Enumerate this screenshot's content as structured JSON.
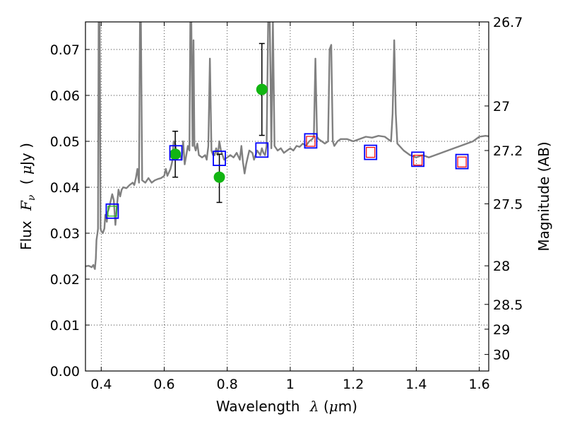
{
  "chart_data": {
    "type": "scatter",
    "xlabel": {
      "pre": "Wavelength",
      "sym": "λ",
      "unit_open": " (",
      "mu": "μ",
      "unit_rest": "m)"
    },
    "ylabel": {
      "pre": "Flux",
      "sym": "F",
      "sub": "ν",
      "unit_open": "( ",
      "mu": "μ",
      "unit_rest": "Jy )"
    },
    "y2label": "Magnitude (AB)",
    "xlim": [
      0.35,
      1.63
    ],
    "ylim": [
      0.0,
      0.076
    ],
    "x_ticks": [
      0.4,
      0.6,
      0.8,
      1.0,
      1.2,
      1.4,
      1.6
    ],
    "x_tick_labels": [
      "0.4",
      "0.6",
      "0.8",
      "1",
      "1.2",
      "1.4",
      "1.6"
    ],
    "y_ticks": [
      0.0,
      0.01,
      0.02,
      0.03,
      0.04,
      0.05,
      0.06,
      0.07
    ],
    "y_tick_labels": [
      "0.00",
      "0.01",
      "0.02",
      "0.03",
      "0.04",
      "0.05",
      "0.06",
      "0.07"
    ],
    "y2_ticks": [
      {
        "label": "26.7",
        "flux": 0.076
      },
      {
        "label": "27",
        "flux": 0.0577
      },
      {
        "label": "27.2",
        "flux": 0.048
      },
      {
        "label": "27.5",
        "flux": 0.0364
      },
      {
        "label": "28",
        "flux": 0.0229
      },
      {
        "label": "28.5",
        "flux": 0.0145
      },
      {
        "label": "29",
        "flux": 0.0091
      },
      {
        "label": "30",
        "flux": 0.0036
      }
    ],
    "grid": true,
    "series": [
      {
        "type": "line",
        "color": "#808080",
        "points": [
          [
            0.35,
            0.0228
          ],
          [
            0.36,
            0.0229
          ],
          [
            0.37,
            0.0226
          ],
          [
            0.375,
            0.0231
          ],
          [
            0.378,
            0.0225
          ],
          [
            0.38,
            0.0222
          ],
          [
            0.383,
            0.0245
          ],
          [
            0.385,
            0.0285
          ],
          [
            0.388,
            0.03
          ],
          [
            0.39,
            0.031
          ],
          [
            0.392,
            0.076
          ],
          [
            0.395,
            0.076
          ],
          [
            0.398,
            0.031
          ],
          [
            0.4,
            0.0305
          ],
          [
            0.405,
            0.03
          ],
          [
            0.41,
            0.031
          ],
          [
            0.413,
            0.034
          ],
          [
            0.418,
            0.0325
          ],
          [
            0.42,
            0.0345
          ],
          [
            0.425,
            0.0355
          ],
          [
            0.43,
            0.037
          ],
          [
            0.435,
            0.0385
          ],
          [
            0.44,
            0.0372
          ],
          [
            0.445,
            0.0318
          ],
          [
            0.45,
            0.036
          ],
          [
            0.455,
            0.0395
          ],
          [
            0.46,
            0.038
          ],
          [
            0.465,
            0.0395
          ],
          [
            0.47,
            0.04
          ],
          [
            0.48,
            0.0398
          ],
          [
            0.49,
            0.0405
          ],
          [
            0.5,
            0.041
          ],
          [
            0.505,
            0.0405
          ],
          [
            0.51,
            0.042
          ],
          [
            0.515,
            0.044
          ],
          [
            0.52,
            0.041
          ],
          [
            0.523,
            0.076
          ],
          [
            0.526,
            0.076
          ],
          [
            0.53,
            0.0415
          ],
          [
            0.54,
            0.041
          ],
          [
            0.55,
            0.042
          ],
          [
            0.56,
            0.041
          ],
          [
            0.57,
            0.0415
          ],
          [
            0.58,
            0.0418
          ],
          [
            0.59,
            0.042
          ],
          [
            0.6,
            0.0425
          ],
          [
            0.605,
            0.044
          ],
          [
            0.61,
            0.0425
          ],
          [
            0.62,
            0.044
          ],
          [
            0.625,
            0.0455
          ],
          [
            0.63,
            0.05
          ],
          [
            0.635,
            0.0495
          ],
          [
            0.64,
            0.047
          ],
          [
            0.645,
            0.048
          ],
          [
            0.65,
            0.047
          ],
          [
            0.655,
            0.046
          ],
          [
            0.66,
            0.05
          ],
          [
            0.665,
            0.045
          ],
          [
            0.67,
            0.047
          ],
          [
            0.675,
            0.049
          ],
          [
            0.68,
            0.048
          ],
          [
            0.683,
            0.076
          ],
          [
            0.686,
            0.076
          ],
          [
            0.69,
            0.049
          ],
          [
            0.693,
            0.072
          ],
          [
            0.696,
            0.049
          ],
          [
            0.7,
            0.048
          ],
          [
            0.705,
            0.0495
          ],
          [
            0.71,
            0.047
          ],
          [
            0.72,
            0.0465
          ],
          [
            0.73,
            0.047
          ],
          [
            0.735,
            0.046
          ],
          [
            0.74,
            0.049
          ],
          [
            0.745,
            0.068
          ],
          [
            0.75,
            0.048
          ],
          [
            0.755,
            0.047
          ],
          [
            0.76,
            0.047
          ],
          [
            0.765,
            0.0485
          ],
          [
            0.77,
            0.047
          ],
          [
            0.775,
            0.05
          ],
          [
            0.78,
            0.048
          ],
          [
            0.785,
            0.047
          ],
          [
            0.79,
            0.046
          ],
          [
            0.8,
            0.0465
          ],
          [
            0.81,
            0.047
          ],
          [
            0.82,
            0.0465
          ],
          [
            0.83,
            0.0475
          ],
          [
            0.84,
            0.046
          ],
          [
            0.845,
            0.049
          ],
          [
            0.85,
            0.0455
          ],
          [
            0.855,
            0.043
          ],
          [
            0.86,
            0.045
          ],
          [
            0.865,
            0.0465
          ],
          [
            0.87,
            0.048
          ],
          [
            0.88,
            0.0475
          ],
          [
            0.885,
            0.046
          ],
          [
            0.89,
            0.047
          ],
          [
            0.895,
            0.048
          ],
          [
            0.9,
            0.0475
          ],
          [
            0.905,
            0.047
          ],
          [
            0.91,
            0.0485
          ],
          [
            0.915,
            0.0475
          ],
          [
            0.92,
            0.047
          ],
          [
            0.925,
            0.049
          ],
          [
            0.93,
            0.076
          ],
          [
            0.935,
            0.076
          ],
          [
            0.94,
            0.0485
          ],
          [
            0.945,
            0.076
          ],
          [
            0.95,
            0.049
          ],
          [
            0.96,
            0.048
          ],
          [
            0.97,
            0.0485
          ],
          [
            0.98,
            0.0475
          ],
          [
            0.99,
            0.048
          ],
          [
            1.0,
            0.0485
          ],
          [
            1.01,
            0.048
          ],
          [
            1.02,
            0.049
          ],
          [
            1.03,
            0.0488
          ],
          [
            1.04,
            0.0495
          ],
          [
            1.05,
            0.049
          ],
          [
            1.06,
            0.05
          ],
          [
            1.07,
            0.0505
          ],
          [
            1.075,
            0.051
          ],
          [
            1.08,
            0.068
          ],
          [
            1.085,
            0.051
          ],
          [
            1.09,
            0.0505
          ],
          [
            1.1,
            0.05
          ],
          [
            1.11,
            0.0495
          ],
          [
            1.12,
            0.05
          ],
          [
            1.125,
            0.07
          ],
          [
            1.13,
            0.071
          ],
          [
            1.135,
            0.05
          ],
          [
            1.14,
            0.049
          ],
          [
            1.15,
            0.05
          ],
          [
            1.16,
            0.0505
          ],
          [
            1.18,
            0.0505
          ],
          [
            1.2,
            0.05
          ],
          [
            1.22,
            0.0505
          ],
          [
            1.24,
            0.051
          ],
          [
            1.26,
            0.0508
          ],
          [
            1.28,
            0.0512
          ],
          [
            1.3,
            0.051
          ],
          [
            1.31,
            0.0505
          ],
          [
            1.32,
            0.05
          ],
          [
            1.325,
            0.056
          ],
          [
            1.33,
            0.072
          ],
          [
            1.335,
            0.056
          ],
          [
            1.34,
            0.0495
          ],
          [
            1.36,
            0.048
          ],
          [
            1.38,
            0.047
          ],
          [
            1.4,
            0.0465
          ],
          [
            1.42,
            0.047
          ],
          [
            1.44,
            0.0465
          ],
          [
            1.46,
            0.047
          ],
          [
            1.48,
            0.0475
          ],
          [
            1.5,
            0.048
          ],
          [
            1.52,
            0.0485
          ],
          [
            1.54,
            0.049
          ],
          [
            1.56,
            0.0495
          ],
          [
            1.58,
            0.05
          ],
          [
            1.6,
            0.051
          ],
          [
            1.62,
            0.0512
          ],
          [
            1.63,
            0.0511
          ]
        ]
      },
      {
        "type": "points",
        "marker": "circle",
        "color": "#12b512",
        "points": [
          {
            "x": 0.635,
            "y": 0.0472,
            "yerr_low": 0.005,
            "yerr_high": 0.005
          },
          {
            "x": 0.775,
            "y": 0.0422,
            "yerr_low": 0.0055,
            "yerr_high": 0.005
          },
          {
            "x": 0.91,
            "y": 0.0613,
            "yerr_low": 0.01,
            "yerr_high": 0.01
          }
        ]
      },
      {
        "type": "points",
        "marker": "square",
        "color": "#0000ff",
        "points": [
          {
            "x": 0.435,
            "y": 0.0348
          },
          {
            "x": 0.637,
            "y": 0.0475
          },
          {
            "x": 0.775,
            "y": 0.0463
          },
          {
            "x": 0.91,
            "y": 0.0481
          },
          {
            "x": 1.065,
            "y": 0.0501
          },
          {
            "x": 1.255,
            "y": 0.0476
          },
          {
            "x": 1.405,
            "y": 0.0461
          },
          {
            "x": 1.545,
            "y": 0.0456
          }
        ]
      },
      {
        "type": "points",
        "marker": "small-square",
        "color": "#ff0000",
        "points": [
          {
            "x": 1.065,
            "y": 0.05
          },
          {
            "x": 1.255,
            "y": 0.0476
          },
          {
            "x": 1.405,
            "y": 0.0459
          },
          {
            "x": 1.545,
            "y": 0.0455
          }
        ]
      },
      {
        "type": "points",
        "marker": "small-square",
        "color": "#12b512",
        "points": [
          {
            "x": 0.435,
            "y": 0.0348
          }
        ]
      }
    ]
  }
}
